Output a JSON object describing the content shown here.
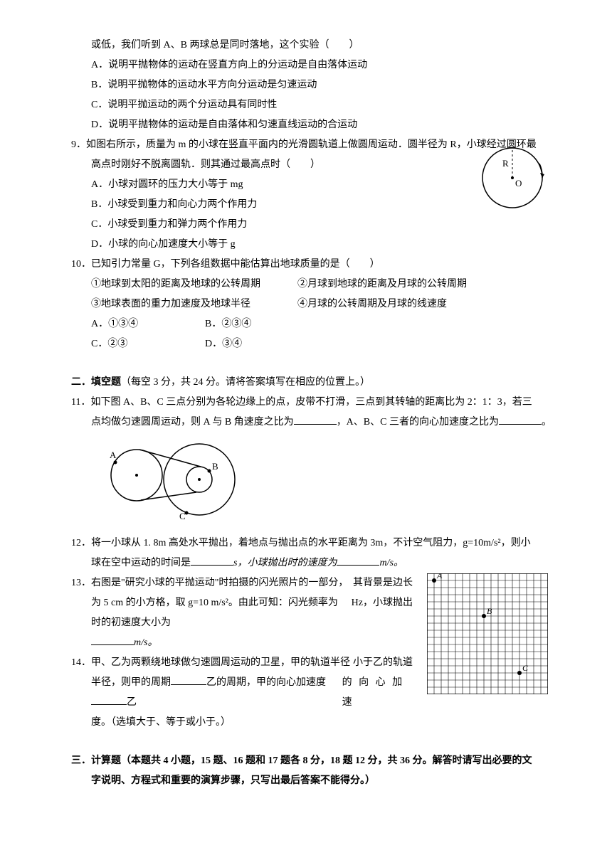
{
  "q8": {
    "stem_l1": "或低，我们听到 A、B 两球总是同时落地，这个实验（　　）",
    "A": "A．说明平抛物体的运动在竖直方向上的分运动是自由落体运动",
    "B": "B．说明平抛物体的运动水平方向分运动是匀速运动",
    "C": "C．说明平抛运动的两个分运动具有同时性",
    "D": "D．说明平抛物体的运动是自由落体和匀速直线运动的合运动"
  },
  "q9": {
    "num": "9．",
    "stem_l1": "如图右所示，质量为 m 的小球在竖直平面内的光滑圆轨道上做圆周运动．圆半径为 R，小球经过圆环最",
    "stem_l2": "高点时刚好不脱离圆轨．则其通过最高点时（　　）",
    "A": "A．小球对圆环的压力大小等于 mg",
    "B": "B．小球受到重力和向心力两个作用力",
    "C": "C．小球受到重力和弹力两个作用力",
    "D": "D．小球的向心加速度大小等于 g",
    "labels": {
      "R": "R",
      "O": "O"
    }
  },
  "q10": {
    "num": "10．",
    "stem": "已知引力常量 G，下列各组数据中能估算出地球质量的是（　　）",
    "c1": "①地球到太阳的距离及地球的公转周期",
    "c2": "②月球到地球的距离及月球的公转周期",
    "c3": "③地球表面的重力加速度及地球半径",
    "c4": "④月球的公转周期及月球的线速度",
    "A": "A．①③④",
    "B": "B．②③④",
    "C": "C．②③",
    "D": "D．③④"
  },
  "sec2": {
    "title": "二．填空题",
    "note": "（每空 3 分，共 24 分。请将答案填写在相应的位置上。）"
  },
  "q11": {
    "num": "11．",
    "l1_a": "如下图 A、B、C 三点分别为各轮边缘上的点，皮带不打滑，三点到其转轴的距离比为 2：1：3，若三",
    "l2_a": "点均做匀速圆周运动，则 A 与 B 角速度之比为",
    "l2_b": "，A、B、C 三者的向心加速度之比为",
    "l2_c": "。",
    "labels": {
      "A": "A",
      "B": "B",
      "C": "C"
    }
  },
  "q12": {
    "num": "12．",
    "l1": "将一小球从 1. 8m 高处水平抛出，着地点与抛出点的水平距离为 3m，不计空气阻力，g=10m/s²，则小",
    "l2_a": "球在空中运动的时间是",
    "l2_b": "s，小球抛出时的速度为",
    "l2_c": "m/s。"
  },
  "q13": {
    "num": "13．",
    "l1_a": "右图是\"研究小球的平抛运动\"时拍摄的闪光照片的一部分，",
    "l1_b": "其背景是边长",
    "l2_a": "为 5 cm 的小方格，取 g=10 m/s²。由此可知：闪光频率为",
    "l2_b": "Hz，小球抛出",
    "l3_a": "时的初速度大小为",
    "l4": "m/s。",
    "labels": {
      "A": "A",
      "B": "B",
      "C": "C"
    }
  },
  "q14": {
    "num": "14．",
    "l1_a": "甲、乙为两颗绕地球做匀速圆周运动的卫星，甲的轨道半径",
    "l1_b": "小于乙的轨道",
    "l2_a": "半径，则甲的周期",
    "l2_b": "乙的周期，甲的向心加速度",
    "l2_c": "乙",
    "l2_d": "的 向 心 加 速",
    "l3": "度。（选填大于、等于或小于。）"
  },
  "sec3": {
    "title": "三．计算题",
    "note_l1": "（本题共 4 小题，15 题、16 题和 17 题各 8 分，18 题 12 分，共 36 分。解答时请写出必要的文",
    "note_l2": "字说明、方程式和重要的演算步骤，只写出最后答案不能得分。）"
  },
  "figures": {
    "grid_size": 17,
    "q13_points": {
      "A": [
        1,
        1
      ],
      "B": [
        8,
        6
      ],
      "C": [
        13,
        14
      ]
    }
  }
}
